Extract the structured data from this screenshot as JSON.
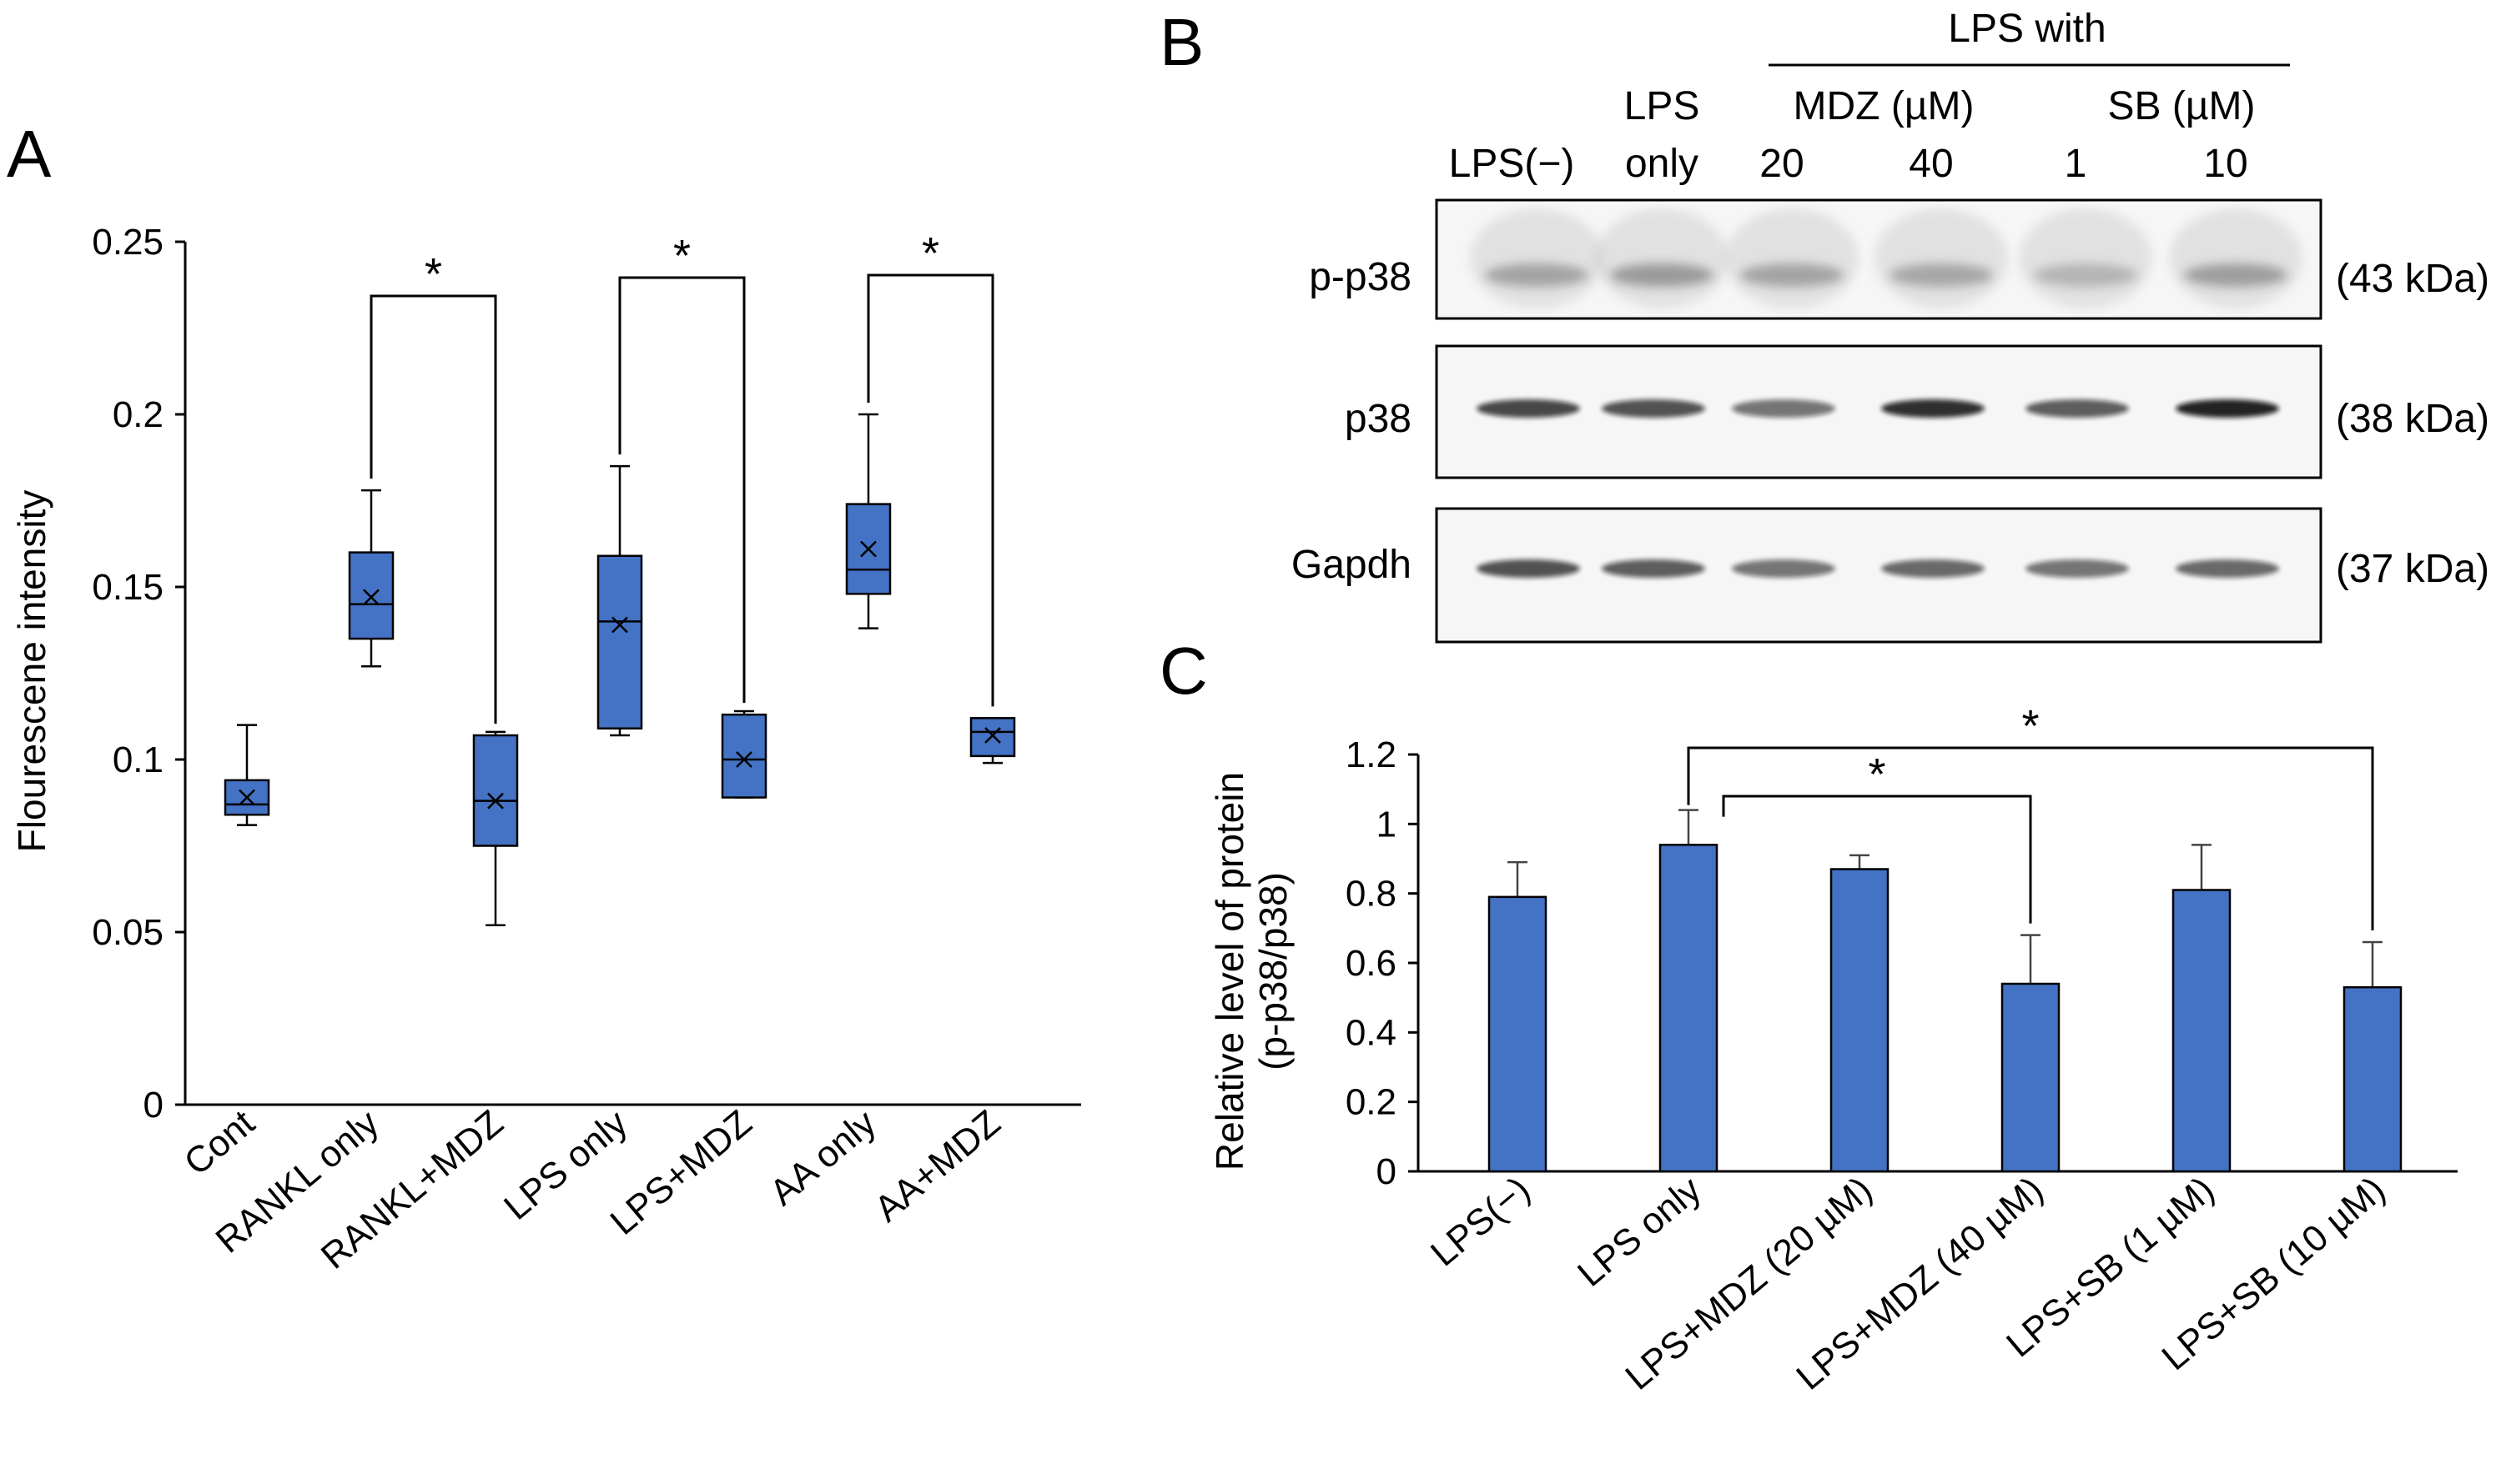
{
  "panels": {
    "a": "A",
    "b": "B",
    "c": "C"
  },
  "colors": {
    "bar": "#4472C4",
    "edge": "#000000"
  },
  "chart_data": [
    {
      "type": "box",
      "ylabel": "Flourescene intensity",
      "ylim": [
        0,
        0.25
      ],
      "yticks": [
        "0",
        "0.05",
        "0.1",
        "0.15",
        "0.2",
        "0.25"
      ],
      "categories": [
        "Cont",
        "RANKL only",
        "RANKL+MDZ",
        "LPS only",
        "LPS+MDZ",
        "AA only",
        "AA+MDZ"
      ],
      "boxes": [
        {
          "min": 0.081,
          "q1": 0.084,
          "median": 0.087,
          "q3": 0.094,
          "max": 0.11,
          "mean": 0.089
        },
        {
          "min": 0.127,
          "q1": 0.135,
          "median": 0.145,
          "q3": 0.16,
          "max": 0.178,
          "mean": 0.147
        },
        {
          "min": 0.052,
          "q1": 0.075,
          "median": 0.088,
          "q3": 0.107,
          "max": 0.108,
          "mean": 0.088
        },
        {
          "min": 0.107,
          "q1": 0.109,
          "median": 0.14,
          "q3": 0.159,
          "max": 0.185,
          "mean": 0.139
        },
        {
          "min": 0.089,
          "q1": 0.089,
          "median": 0.1,
          "q3": 0.113,
          "max": 0.114,
          "mean": 0.1
        },
        {
          "min": 0.138,
          "q1": 0.148,
          "median": 0.155,
          "q3": 0.174,
          "max": 0.2,
          "mean": 0.161
        },
        {
          "min": 0.099,
          "q1": 0.101,
          "median": 0.108,
          "q3": 0.112,
          "max": 0.112,
          "mean": 0.107
        }
      ],
      "significance": [
        {
          "from": 1,
          "to": 2,
          "label": "*"
        },
        {
          "from": 3,
          "to": 4,
          "label": "*"
        },
        {
          "from": 5,
          "to": 6,
          "label": "*"
        }
      ]
    },
    {
      "type": "bar",
      "ylabel_lines": [
        "Relative level of protein",
        "(p-p38/p38)"
      ],
      "ylim": [
        0,
        1.2
      ],
      "yticks": [
        "0",
        "0.2",
        "0.4",
        "0.6",
        "0.8",
        "1",
        "1.2"
      ],
      "categories": [
        "LPS(−)",
        "LPS only",
        "LPS+MDZ (20 µM)",
        "LPS+MDZ (40 µM)",
        "LPS+SB (1 µM)",
        "LPS+SB (10 µM)"
      ],
      "values": [
        0.79,
        0.94,
        0.87,
        0.54,
        0.81,
        0.53
      ],
      "errors": [
        0.1,
        0.1,
        0.04,
        0.14,
        0.13,
        0.13
      ],
      "significance": [
        {
          "from": 1,
          "to": 3,
          "label": "*"
        },
        {
          "from": 1,
          "to": 5,
          "label": "*"
        }
      ]
    }
  ],
  "western_blot": {
    "header": "LPS with",
    "group_mdz": "MDZ (µM)",
    "group_sb": "SB (µM)",
    "lane_lps_neg": "LPS(−)",
    "lane_lps_only_1": "LPS",
    "lane_lps_only_2": "only",
    "lanes_dose": [
      "20",
      "40",
      "1",
      "10"
    ],
    "rows": [
      {
        "label": "p-p38",
        "kda": "(43 kDa)"
      },
      {
        "label": "p38",
        "kda": "(38 kDa)"
      },
      {
        "label": "Gapdh",
        "kda": "(37 kDa)"
      }
    ],
    "band_intensity": {
      "p-p38": [
        0.35,
        0.4,
        0.35,
        0.33,
        0.25,
        0.38
      ],
      "p38": [
        0.75,
        0.7,
        0.55,
        0.85,
        0.65,
        0.9
      ],
      "Gapdh": [
        0.7,
        0.65,
        0.55,
        0.6,
        0.55,
        0.6
      ]
    }
  }
}
